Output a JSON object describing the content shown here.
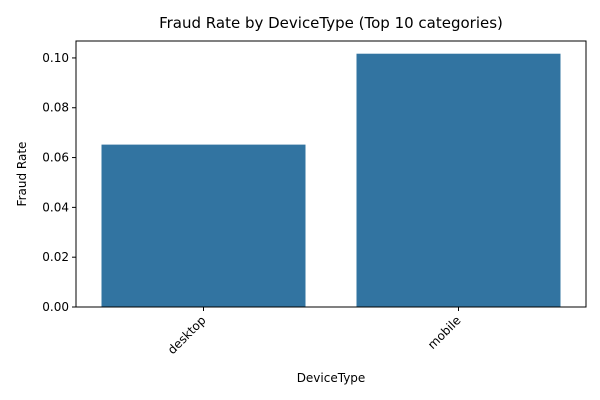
{
  "chart_data": {
    "type": "bar",
    "title": "Fraud Rate by DeviceType (Top 10 categories)",
    "xlabel": "DeviceType",
    "ylabel": "Fraud Rate",
    "categories": [
      "desktop",
      "mobile"
    ],
    "values": [
      0.0652,
      0.1017
    ],
    "ylim": [
      0,
      0.1068
    ],
    "yticks": [
      0.0,
      0.02,
      0.04,
      0.06,
      0.08,
      0.1
    ],
    "ytick_labels": [
      "0.00",
      "0.02",
      "0.04",
      "0.06",
      "0.08",
      "0.10"
    ],
    "xtick_rotation": 45,
    "grid": false,
    "bar_color": "#3274a1"
  }
}
